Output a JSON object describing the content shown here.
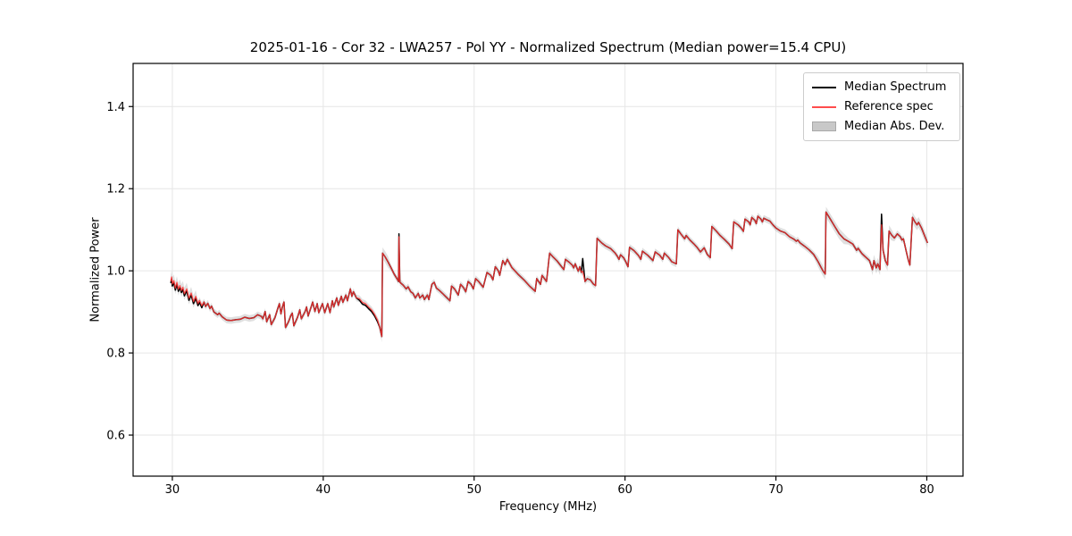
{
  "chart_data": {
    "type": "line",
    "title": "2025-01-16 - Cor 32 - LWA257 - Pol YY - Normalized Spectrum (Median power=15.4 CPU)",
    "xlabel": "Frequency (MHz)",
    "ylabel": "Normalized Power",
    "xlim": [
      27.4,
      82.4
    ],
    "ylim": [
      0.5,
      1.505
    ],
    "xticks": [
      30,
      40,
      50,
      60,
      70,
      80
    ],
    "yticks": [
      0.6,
      0.8,
      1.0,
      1.2,
      1.4
    ],
    "grid": true,
    "colors": {
      "grid": "#e6e6e6",
      "frame": "#000000",
      "median_line": "#000000",
      "reference_line": "#ff3333",
      "reference_legend": "#ff4d4d",
      "mad_band": "#bbbbbb"
    },
    "legend": {
      "position": "upper right",
      "items": [
        {
          "label": "Median Spectrum",
          "type": "line",
          "color": "#000000"
        },
        {
          "label": "Reference spec",
          "type": "line",
          "color": "#ff4d4d"
        },
        {
          "label": "Median Abs. Dev.",
          "type": "patch",
          "color": "#c8c8c8"
        }
      ]
    },
    "reference_points": [
      [
        29.9,
        0.975
      ],
      [
        29.95,
        0.985
      ],
      [
        30.0,
        0.968
      ],
      [
        30.1,
        0.976
      ],
      [
        30.2,
        0.958
      ],
      [
        30.3,
        0.972
      ],
      [
        30.4,
        0.955
      ],
      [
        30.5,
        0.964
      ],
      [
        30.6,
        0.952
      ],
      [
        30.7,
        0.96
      ],
      [
        30.8,
        0.944
      ],
      [
        30.95,
        0.956
      ],
      [
        31.1,
        0.933
      ],
      [
        31.25,
        0.946
      ],
      [
        31.4,
        0.925
      ],
      [
        31.55,
        0.938
      ],
      [
        31.7,
        0.92
      ],
      [
        31.8,
        0.928
      ],
      [
        31.95,
        0.915
      ],
      [
        32.1,
        0.924
      ],
      [
        32.2,
        0.913
      ],
      [
        32.35,
        0.921
      ],
      [
        32.5,
        0.908
      ],
      [
        32.6,
        0.914
      ],
      [
        32.75,
        0.9
      ],
      [
        32.9,
        0.896
      ],
      [
        33.0,
        0.893
      ],
      [
        33.1,
        0.897
      ],
      [
        33.3,
        0.888
      ],
      [
        33.6,
        0.88
      ],
      [
        33.9,
        0.879
      ],
      [
        34.2,
        0.881
      ],
      [
        34.5,
        0.882
      ],
      [
        34.8,
        0.887
      ],
      [
        35.1,
        0.884
      ],
      [
        35.4,
        0.886
      ],
      [
        35.65,
        0.893
      ],
      [
        35.9,
        0.889
      ],
      [
        36.0,
        0.883
      ],
      [
        36.15,
        0.901
      ],
      [
        36.25,
        0.876
      ],
      [
        36.45,
        0.893
      ],
      [
        36.55,
        0.869
      ],
      [
        36.8,
        0.886
      ],
      [
        37.0,
        0.91
      ],
      [
        37.1,
        0.92
      ],
      [
        37.2,
        0.895
      ],
      [
        37.3,
        0.913
      ],
      [
        37.4,
        0.924
      ],
      [
        37.5,
        0.862
      ],
      [
        37.7,
        0.876
      ],
      [
        37.85,
        0.891
      ],
      [
        37.95,
        0.897
      ],
      [
        38.05,
        0.866
      ],
      [
        38.3,
        0.887
      ],
      [
        38.45,
        0.905
      ],
      [
        38.55,
        0.883
      ],
      [
        38.8,
        0.901
      ],
      [
        38.9,
        0.912
      ],
      [
        39.0,
        0.89
      ],
      [
        39.2,
        0.912
      ],
      [
        39.3,
        0.924
      ],
      [
        39.45,
        0.901
      ],
      [
        39.6,
        0.92
      ],
      [
        39.7,
        0.898
      ],
      [
        39.95,
        0.92
      ],
      [
        40.1,
        0.898
      ],
      [
        40.3,
        0.92
      ],
      [
        40.45,
        0.898
      ],
      [
        40.6,
        0.927
      ],
      [
        40.7,
        0.912
      ],
      [
        40.9,
        0.934
      ],
      [
        41.0,
        0.916
      ],
      [
        41.2,
        0.938
      ],
      [
        41.3,
        0.923
      ],
      [
        41.5,
        0.941
      ],
      [
        41.6,
        0.927
      ],
      [
        41.8,
        0.956
      ],
      [
        41.9,
        0.938
      ],
      [
        42.0,
        0.949
      ],
      [
        42.2,
        0.934
      ],
      [
        42.4,
        0.932
      ],
      [
        42.6,
        0.923
      ],
      [
        42.8,
        0.92
      ],
      [
        43.0,
        0.912
      ],
      [
        43.2,
        0.905
      ],
      [
        43.4,
        0.894
      ],
      [
        43.6,
        0.88
      ],
      [
        43.75,
        0.862
      ],
      [
        43.88,
        0.84
      ],
      [
        43.93,
        1.043
      ],
      [
        44.1,
        1.034
      ],
      [
        44.3,
        1.021
      ],
      [
        44.5,
        1.007
      ],
      [
        44.7,
        0.992
      ],
      [
        44.9,
        0.98
      ],
      [
        44.99,
        0.974
      ],
      [
        45.02,
        1.083
      ],
      [
        45.08,
        0.972
      ],
      [
        45.3,
        0.965
      ],
      [
        45.5,
        0.956
      ],
      [
        45.62,
        0.961
      ],
      [
        45.8,
        0.949
      ],
      [
        45.95,
        0.945
      ],
      [
        46.1,
        0.934
      ],
      [
        46.3,
        0.945
      ],
      [
        46.4,
        0.934
      ],
      [
        46.6,
        0.941
      ],
      [
        46.7,
        0.93
      ],
      [
        46.9,
        0.941
      ],
      [
        47.0,
        0.93
      ],
      [
        47.2,
        0.967
      ],
      [
        47.35,
        0.972
      ],
      [
        47.5,
        0.958
      ],
      [
        47.7,
        0.952
      ],
      [
        47.9,
        0.945
      ],
      [
        48.1,
        0.938
      ],
      [
        48.4,
        0.927
      ],
      [
        48.5,
        0.963
      ],
      [
        48.7,
        0.956
      ],
      [
        48.95,
        0.941
      ],
      [
        49.1,
        0.967
      ],
      [
        49.3,
        0.959
      ],
      [
        49.45,
        0.949
      ],
      [
        49.6,
        0.974
      ],
      [
        49.8,
        0.967
      ],
      [
        49.95,
        0.956
      ],
      [
        50.1,
        0.981
      ],
      [
        50.3,
        0.974
      ],
      [
        50.6,
        0.96
      ],
      [
        50.85,
        0.996
      ],
      [
        51.1,
        0.989
      ],
      [
        51.25,
        0.978
      ],
      [
        51.4,
        1.01
      ],
      [
        51.6,
        1.0
      ],
      [
        51.7,
        0.989
      ],
      [
        51.9,
        1.025
      ],
      [
        52.05,
        1.015
      ],
      [
        52.2,
        1.028
      ],
      [
        52.5,
        1.008
      ],
      [
        52.9,
        0.992
      ],
      [
        53.3,
        0.978
      ],
      [
        53.7,
        0.962
      ],
      [
        54.05,
        0.95
      ],
      [
        54.15,
        0.981
      ],
      [
        54.4,
        0.967
      ],
      [
        54.5,
        0.989
      ],
      [
        54.8,
        0.974
      ],
      [
        55.0,
        1.043
      ],
      [
        55.2,
        1.035
      ],
      [
        55.5,
        1.024
      ],
      [
        55.8,
        1.01
      ],
      [
        55.95,
        1.003
      ],
      [
        56.05,
        1.028
      ],
      [
        56.3,
        1.021
      ],
      [
        56.5,
        1.014
      ],
      [
        56.6,
        1.007
      ],
      [
        56.7,
        1.017
      ],
      [
        56.9,
        0.999
      ],
      [
        57.0,
        1.01
      ],
      [
        57.1,
        0.996
      ],
      [
        57.2,
        0.999
      ],
      [
        57.35,
        0.974
      ],
      [
        57.5,
        0.981
      ],
      [
        57.7,
        0.978
      ],
      [
        57.9,
        0.968
      ],
      [
        58.05,
        0.964
      ],
      [
        58.15,
        1.079
      ],
      [
        58.45,
        1.068
      ],
      [
        58.7,
        1.061
      ],
      [
        59.05,
        1.054
      ],
      [
        59.35,
        1.043
      ],
      [
        59.5,
        1.035
      ],
      [
        59.6,
        1.028
      ],
      [
        59.7,
        1.039
      ],
      [
        59.9,
        1.032
      ],
      [
        60.05,
        1.022
      ],
      [
        60.2,
        1.01
      ],
      [
        60.3,
        1.057
      ],
      [
        60.6,
        1.049
      ],
      [
        60.9,
        1.037
      ],
      [
        61.05,
        1.028
      ],
      [
        61.15,
        1.048
      ],
      [
        61.5,
        1.038
      ],
      [
        61.85,
        1.025
      ],
      [
        62.0,
        1.046
      ],
      [
        62.3,
        1.038
      ],
      [
        62.5,
        1.028
      ],
      [
        62.6,
        1.043
      ],
      [
        62.9,
        1.032
      ],
      [
        63.1,
        1.022
      ],
      [
        63.4,
        1.017
      ],
      [
        63.5,
        1.1
      ],
      [
        63.7,
        1.09
      ],
      [
        63.95,
        1.078
      ],
      [
        64.05,
        1.086
      ],
      [
        64.3,
        1.075
      ],
      [
        64.55,
        1.066
      ],
      [
        64.8,
        1.056
      ],
      [
        65.0,
        1.046
      ],
      [
        65.25,
        1.056
      ],
      [
        65.45,
        1.04
      ],
      [
        65.65,
        1.032
      ],
      [
        65.75,
        1.108
      ],
      [
        66.05,
        1.097
      ],
      [
        66.3,
        1.086
      ],
      [
        66.6,
        1.076
      ],
      [
        66.9,
        1.065
      ],
      [
        67.1,
        1.054
      ],
      [
        67.2,
        1.119
      ],
      [
        67.5,
        1.112
      ],
      [
        67.7,
        1.104
      ],
      [
        67.85,
        1.096
      ],
      [
        67.95,
        1.126
      ],
      [
        68.2,
        1.119
      ],
      [
        68.3,
        1.112
      ],
      [
        68.4,
        1.13
      ],
      [
        68.6,
        1.123
      ],
      [
        68.7,
        1.115
      ],
      [
        68.8,
        1.133
      ],
      [
        69.0,
        1.126
      ],
      [
        69.1,
        1.119
      ],
      [
        69.2,
        1.128
      ],
      [
        69.4,
        1.124
      ],
      [
        69.6,
        1.121
      ],
      [
        69.8,
        1.112
      ],
      [
        70.0,
        1.104
      ],
      [
        70.3,
        1.097
      ],
      [
        70.6,
        1.093
      ],
      [
        70.9,
        1.083
      ],
      [
        71.2,
        1.077
      ],
      [
        71.35,
        1.072
      ],
      [
        71.45,
        1.075
      ],
      [
        71.6,
        1.068
      ],
      [
        71.9,
        1.06
      ],
      [
        72.2,
        1.051
      ],
      [
        72.5,
        1.04
      ],
      [
        72.8,
        1.022
      ],
      [
        73.0,
        1.008
      ],
      [
        73.15,
        0.998
      ],
      [
        73.27,
        0.992
      ],
      [
        73.32,
        1.143
      ],
      [
        73.6,
        1.126
      ],
      [
        73.9,
        1.108
      ],
      [
        74.2,
        1.09
      ],
      [
        74.5,
        1.078
      ],
      [
        74.8,
        1.072
      ],
      [
        75.1,
        1.065
      ],
      [
        75.35,
        1.05
      ],
      [
        75.45,
        1.055
      ],
      [
        75.7,
        1.042
      ],
      [
        75.9,
        1.035
      ],
      [
        76.2,
        1.025
      ],
      [
        76.4,
        1.003
      ],
      [
        76.5,
        1.025
      ],
      [
        76.65,
        1.007
      ],
      [
        76.75,
        1.017
      ],
      [
        76.9,
        1.003
      ],
      [
        77.0,
        1.112
      ],
      [
        77.1,
        1.05
      ],
      [
        77.25,
        1.025
      ],
      [
        77.4,
        1.014
      ],
      [
        77.5,
        1.097
      ],
      [
        77.65,
        1.088
      ],
      [
        77.85,
        1.08
      ],
      [
        78.05,
        1.09
      ],
      [
        78.25,
        1.083
      ],
      [
        78.35,
        1.075
      ],
      [
        78.45,
        1.078
      ],
      [
        78.65,
        1.045
      ],
      [
        78.78,
        1.025
      ],
      [
        78.88,
        1.014
      ],
      [
        79.05,
        1.13
      ],
      [
        79.2,
        1.12
      ],
      [
        79.35,
        1.112
      ],
      [
        79.45,
        1.118
      ],
      [
        79.65,
        1.104
      ],
      [
        79.85,
        1.086
      ],
      [
        80.05,
        1.068
      ]
    ],
    "median_offset_ranges": [
      {
        "range": [
          29.9,
          32.0
        ],
        "delta": -0.005
      },
      {
        "range": [
          42.3,
          43.7
        ],
        "delta": -0.004
      }
    ],
    "median_overrides": [
      [
        45.02,
        1.09
      ],
      [
        57.2,
        1.03
      ],
      [
        77.0,
        1.138
      ]
    ],
    "mad_default": 0.008,
    "mad_regions": [
      {
        "range": [
          29.85,
          31.6
        ],
        "halfwidth": 0.015
      },
      {
        "range": [
          43.7,
          44.3
        ],
        "halfwidth": 0.014
      },
      {
        "range": [
          72.8,
          74.6
        ],
        "halfwidth": 0.013
      },
      {
        "range": [
          76.3,
          77.8
        ],
        "halfwidth": 0.014
      },
      {
        "range": [
          78.9,
          80.1
        ],
        "halfwidth": 0.013
      }
    ]
  }
}
